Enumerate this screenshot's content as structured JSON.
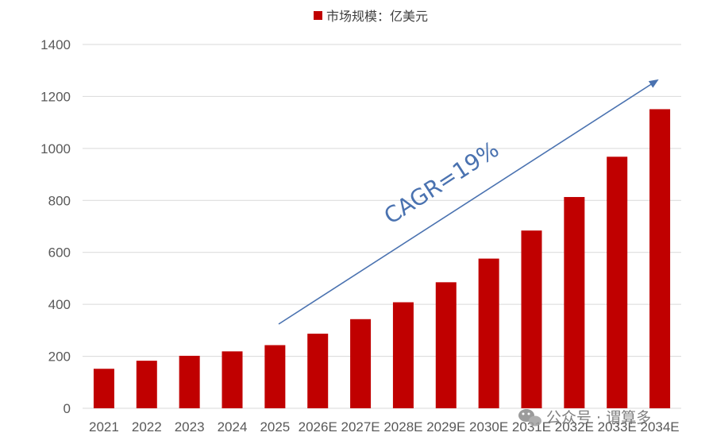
{
  "chart_data": {
    "type": "bar",
    "categories": [
      "2021",
      "2022",
      "2023",
      "2024",
      "2025",
      "2026E",
      "2027E",
      "2028E",
      "2029E",
      "2030E",
      "2031E",
      "2032E",
      "2033E",
      "2034E"
    ],
    "series": [
      {
        "name": "市场规模：亿美元",
        "values": [
          152,
          183,
          202,
          219,
          243,
          287,
          343,
          408,
          485,
          576,
          684,
          813,
          968,
          1151
        ]
      }
    ],
    "ylim": [
      0,
      1400
    ],
    "yticks": [
      0,
      200,
      400,
      600,
      800,
      1000,
      1200,
      1400
    ],
    "grid": true,
    "legend": "top-center",
    "annotation": "CAGR=19%",
    "colors": {
      "bar": "#c00000",
      "grid": "#d9d9d9",
      "annotation": "#4a72b0"
    }
  },
  "watermark": {
    "text": "公众号 · 谓算多",
    "icon": "wechat-icon"
  }
}
